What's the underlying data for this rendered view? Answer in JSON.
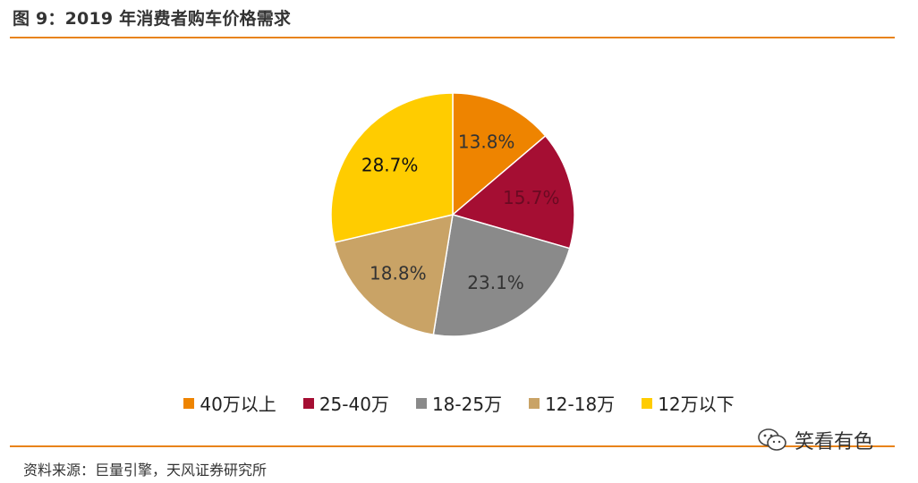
{
  "title": "图 9：2019 年消费者购车价格需求",
  "source": "资料来源：巨量引擎，天风证券研究所",
  "watermark": "笑看有色",
  "colors": {
    "accent_rule": "#e8831a"
  },
  "chart_data": {
    "type": "pie",
    "title": "",
    "legend_position": "bottom",
    "slices": [
      {
        "label": "40万以上",
        "value": 13.8,
        "display": "13.8%",
        "color": "#ee8400",
        "text_color": "#333333"
      },
      {
        "label": "25-40万",
        "value": 15.7,
        "display": "15.7%",
        "color": "#a50e33",
        "text_color": "#6a0a22"
      },
      {
        "label": "18-25万",
        "value": 23.1,
        "display": "23.1%",
        "color": "#8a8a8a",
        "text_color": "#333333"
      },
      {
        "label": "12-18万",
        "value": 18.8,
        "display": "18.8%",
        "color": "#c9a366",
        "text_color": "#333333"
      },
      {
        "label": "12万以下",
        "value": 28.7,
        "display": "28.7%",
        "color": "#ffcc00",
        "text_color": "#111111"
      }
    ]
  }
}
